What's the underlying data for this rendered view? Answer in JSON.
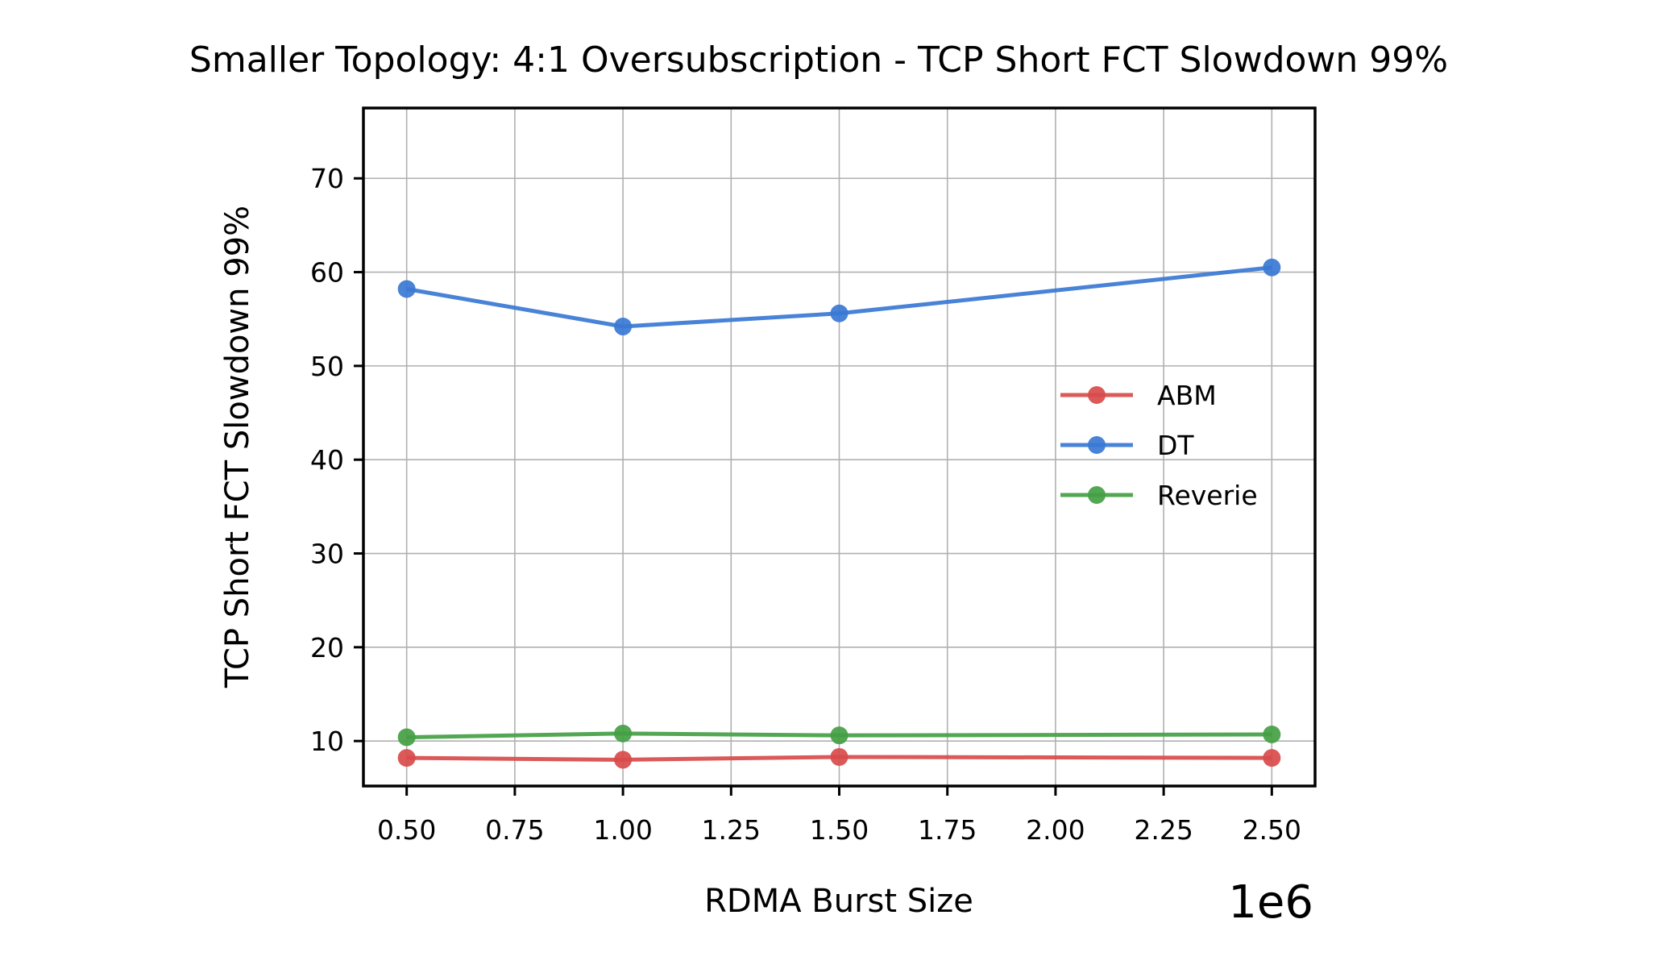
{
  "chart_data": {
    "type": "line",
    "title": "Smaller Topology: 4:1 Oversubscription - TCP Short FCT Slowdown 99%",
    "xlabel": "RDMA Burst Size",
    "ylabel": "TCP Short FCT Slowdown 99%",
    "x_offset_label": "1e6",
    "x": [
      0.5,
      1.0,
      1.5,
      2.5
    ],
    "xlim": [
      0.4,
      2.6
    ],
    "ylim": [
      5.2,
      77.5
    ],
    "x_ticks": [
      0.5,
      0.75,
      1.0,
      1.25,
      1.5,
      1.75,
      2.0,
      2.25,
      2.5
    ],
    "x_tick_labels": [
      "0.50",
      "0.75",
      "1.00",
      "1.25",
      "1.50",
      "1.75",
      "2.00",
      "2.25",
      "2.50"
    ],
    "y_ticks": [
      10,
      20,
      30,
      40,
      50,
      60,
      70
    ],
    "y_tick_labels": [
      "10",
      "20",
      "30",
      "40",
      "50",
      "60",
      "70"
    ],
    "grid": true,
    "legend_position": "center-right",
    "series": [
      {
        "name": "ABM",
        "color": "#d84b4b",
        "values": [
          8.2,
          8.0,
          8.3,
          8.2
        ]
      },
      {
        "name": "DT",
        "color": "#3a78d4",
        "values": [
          58.2,
          54.2,
          55.6,
          60.5
        ]
      },
      {
        "name": "Reverie",
        "color": "#44a044",
        "values": [
          10.4,
          10.8,
          10.6,
          10.7
        ]
      }
    ]
  }
}
